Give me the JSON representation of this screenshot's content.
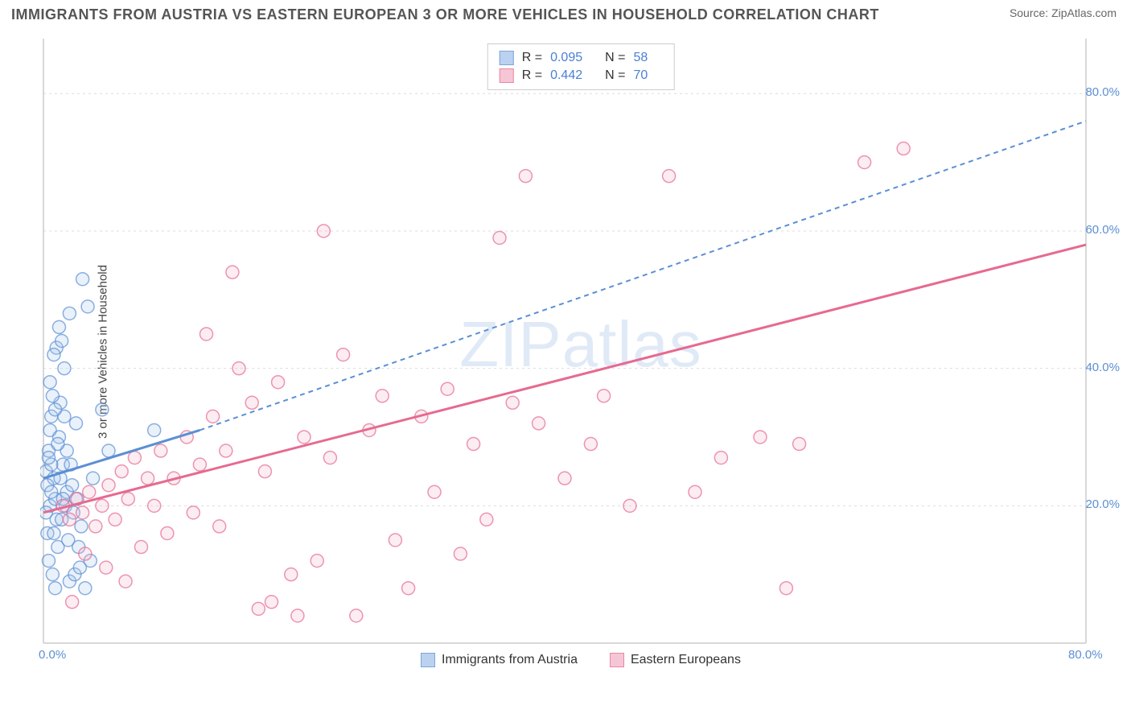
{
  "title": "IMMIGRANTS FROM AUSTRIA VS EASTERN EUROPEAN 3 OR MORE VEHICLES IN HOUSEHOLD CORRELATION CHART",
  "source": "Source: ZipAtlas.com",
  "watermark": "ZIPatlas",
  "y_axis_label": "3 or more Vehicles in Household",
  "chart": {
    "type": "scatter",
    "background_color": "#ffffff",
    "grid_color": "#dddddd",
    "axis_color": "#cccccc",
    "tick_color": "#5b8fd4",
    "xlim": [
      0,
      80
    ],
    "ylim": [
      0,
      88
    ],
    "xticks": [
      {
        "v": 0,
        "label": "0.0%"
      },
      {
        "v": 80,
        "label": "80.0%"
      }
    ],
    "yticks": [
      {
        "v": 20,
        "label": "20.0%"
      },
      {
        "v": 40,
        "label": "40.0%"
      },
      {
        "v": 60,
        "label": "60.0%"
      },
      {
        "v": 80,
        "label": "80.0%"
      }
    ],
    "marker_radius": 8,
    "marker_stroke_width": 1.5,
    "marker_fill_opacity": 0.25,
    "line_width_solid": 3,
    "line_width_dashed": 2,
    "dash_pattern": "6,5"
  },
  "series": {
    "austria": {
      "label": "Immigrants from Austria",
      "color_stroke": "#5b8fd4",
      "color_fill": "#a9c6ec",
      "R": "0.095",
      "N": "58",
      "trend_solid": {
        "x1": 0,
        "y1": 24,
        "x2": 12,
        "y2": 31
      },
      "trend_dashed": {
        "x1": 12,
        "y1": 31,
        "x2": 80,
        "y2": 76
      },
      "points": [
        [
          0.2,
          25
        ],
        [
          0.4,
          28
        ],
        [
          0.8,
          24
        ],
        [
          1.0,
          18
        ],
        [
          1.2,
          30
        ],
        [
          0.5,
          20
        ],
        [
          0.3,
          16
        ],
        [
          0.6,
          33
        ],
        [
          1.5,
          26
        ],
        [
          1.8,
          22
        ],
        [
          0.4,
          12
        ],
        [
          0.7,
          10
        ],
        [
          1.1,
          14
        ],
        [
          0.9,
          8
        ],
        [
          2.0,
          9
        ],
        [
          2.4,
          10
        ],
        [
          2.8,
          11
        ],
        [
          3.2,
          8
        ],
        [
          3.6,
          12
        ],
        [
          1.3,
          35
        ],
        [
          0.5,
          38
        ],
        [
          1.0,
          43
        ],
        [
          1.4,
          44
        ],
        [
          0.8,
          42
        ],
        [
          1.6,
          40
        ],
        [
          1.2,
          46
        ],
        [
          2.0,
          48
        ],
        [
          2.5,
          32
        ],
        [
          3.0,
          53
        ],
        [
          3.4,
          49
        ],
        [
          4.5,
          34
        ],
        [
          5.0,
          28
        ],
        [
          1.7,
          20
        ],
        [
          2.2,
          23
        ],
        [
          2.6,
          21
        ],
        [
          0.3,
          23
        ],
        [
          0.6,
          26
        ],
        [
          0.9,
          21
        ],
        [
          1.4,
          18
        ],
        [
          0.2,
          19
        ],
        [
          1.8,
          28
        ],
        [
          3.8,
          24
        ],
        [
          0.5,
          31
        ],
        [
          1.1,
          29
        ],
        [
          1.6,
          33
        ],
        [
          2.3,
          19
        ],
        [
          0.8,
          16
        ],
        [
          2.9,
          17
        ],
        [
          0.4,
          27
        ],
        [
          8.5,
          31
        ],
        [
          0.7,
          36
        ],
        [
          1.3,
          24
        ],
        [
          1.9,
          15
        ],
        [
          2.7,
          14
        ],
        [
          0.6,
          22
        ],
        [
          0.9,
          34
        ],
        [
          1.5,
          21
        ],
        [
          2.1,
          26
        ]
      ]
    },
    "eastern": {
      "label": "Eastern Europeans",
      "color_stroke": "#e66a8f",
      "color_fill": "#f5b8cb",
      "R": "0.442",
      "N": "70",
      "trend_solid": {
        "x1": 0,
        "y1": 19,
        "x2": 80,
        "y2": 58
      },
      "points": [
        [
          1.5,
          20
        ],
        [
          2.0,
          18
        ],
        [
          2.5,
          21
        ],
        [
          3.0,
          19
        ],
        [
          3.5,
          22
        ],
        [
          4.0,
          17
        ],
        [
          4.5,
          20
        ],
        [
          5.0,
          23
        ],
        [
          5.5,
          18
        ],
        [
          6.0,
          25
        ],
        [
          6.5,
          21
        ],
        [
          7.0,
          27
        ],
        [
          8.0,
          24
        ],
        [
          8.5,
          20
        ],
        [
          9.0,
          28
        ],
        [
          10,
          24
        ],
        [
          11,
          30
        ],
        [
          12,
          26
        ],
        [
          12.5,
          45
        ],
        [
          13,
          33
        ],
        [
          14,
          28
        ],
        [
          14.5,
          54
        ],
        [
          15,
          40
        ],
        [
          16,
          35
        ],
        [
          17,
          25
        ],
        [
          17.5,
          6
        ],
        [
          18,
          38
        ],
        [
          19,
          10
        ],
        [
          20,
          30
        ],
        [
          21,
          12
        ],
        [
          21.5,
          60
        ],
        [
          22,
          27
        ],
        [
          23,
          42
        ],
        [
          24,
          4
        ],
        [
          25,
          31
        ],
        [
          26,
          36
        ],
        [
          27,
          15
        ],
        [
          28,
          8
        ],
        [
          29,
          33
        ],
        [
          30,
          22
        ],
        [
          31,
          37
        ],
        [
          32,
          13
        ],
        [
          33,
          29
        ],
        [
          34,
          18
        ],
        [
          35,
          59
        ],
        [
          36,
          35
        ],
        [
          37,
          68
        ],
        [
          38,
          32
        ],
        [
          40,
          24
        ],
        [
          42,
          29
        ],
        [
          43,
          36
        ],
        [
          45,
          20
        ],
        [
          48,
          68
        ],
        [
          50,
          22
        ],
        [
          52,
          27
        ],
        [
          55,
          30
        ],
        [
          57,
          8
        ],
        [
          58,
          29
        ],
        [
          63,
          70
        ],
        [
          66,
          72
        ],
        [
          3.2,
          13
        ],
        [
          4.8,
          11
        ],
        [
          6.3,
          9
        ],
        [
          7.5,
          14
        ],
        [
          9.5,
          16
        ],
        [
          11.5,
          19
        ],
        [
          13.5,
          17
        ],
        [
          2.2,
          6
        ],
        [
          16.5,
          5
        ],
        [
          19.5,
          4
        ]
      ]
    }
  },
  "stats_box": {
    "r_label": "R =",
    "n_label": "N ="
  }
}
